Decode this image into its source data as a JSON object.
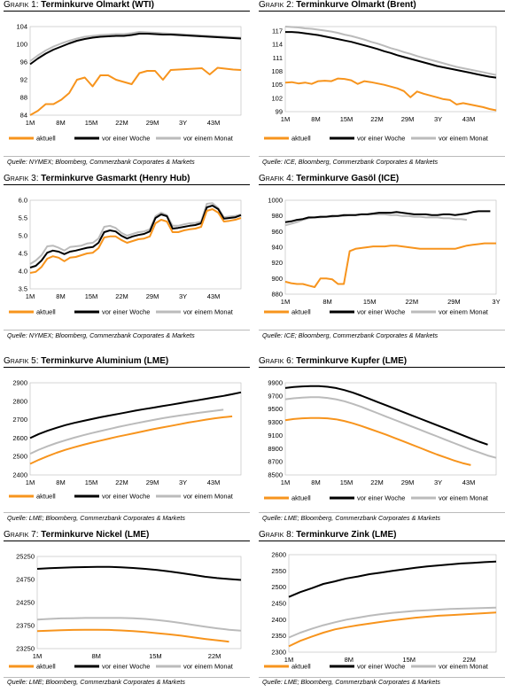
{
  "colors": {
    "aktuell": "#F7941D",
    "woche": "#000000",
    "monat": "#BBBBBB"
  },
  "charts": [
    {
      "prefix": "Grafik 1:",
      "name": "Terminkurve Olmarkt (WTI)",
      "source": "Quelle: NYMEX; Bloomberg, Commerzbank Corporates & Markets",
      "xticks": [
        "1M",
        "8M",
        "15M",
        "22M",
        "29M",
        "3Y",
        "43M"
      ],
      "ylim": [
        84,
        104
      ],
      "yticks": [
        "84",
        "88",
        "92",
        "96",
        "100",
        "104"
      ],
      "legend": [
        "aktuell",
        "vor einer Woche",
        "vor einem Monat"
      ]
    },
    {
      "prefix": "Grafik 2:",
      "name": "Terminkurve Olmarkt (Brent)",
      "source": "Quelle: ICE, Bloomberg, Commerzbank Corporates & Markets",
      "xticks": [
        "1M",
        "8M",
        "15M",
        "22M",
        "29M",
        "3Y",
        "43M"
      ],
      "ylim": [
        99,
        118
      ],
      "yticks": [
        "99",
        "102",
        "105",
        "108",
        "111",
        "114",
        "117"
      ],
      "legend": [
        "aktuell",
        "vor einer Woche",
        "vor einem Monat"
      ]
    },
    {
      "prefix": "Grafik 3:",
      "name": "Terminkurve Gasmarkt (Henry Hub)",
      "source": "Quelle: NYMEX; Bloomberg, Commerzbank Corporates & Markets",
      "xticks": [
        "1M",
        "8M",
        "15M",
        "22M",
        "29M",
        "3Y",
        "43M"
      ],
      "ylim": [
        3.5,
        6.0
      ],
      "yticks": [
        "3.5",
        "4.0",
        "4.5",
        "5.0",
        "5.5",
        "6.0"
      ],
      "legend": [
        "aktuell",
        "vor einer Woche",
        "vor einem Monat"
      ]
    },
    {
      "prefix": "Grafik 4:",
      "name": "Terminkurve Gasöl (ICE)",
      "source": "Quelle: ICE; Bloomberg, Commerzbank Corporates & Markets",
      "xticks": [
        "1M",
        "8M",
        "15M",
        "22M",
        "29M",
        "3Y"
      ],
      "ylim": [
        880,
        1000
      ],
      "yticks": [
        "880",
        "900",
        "920",
        "940",
        "960",
        "980",
        "1000"
      ],
      "legend": [
        "aktuell",
        "vor einer Woche",
        "vor einem Monat"
      ]
    },
    {
      "prefix": "Grafik 5:",
      "name": "Terminkurve Aluminium (LME)",
      "source": "Quelle: LME; Bloomberg, Commerzbank Corporates & Markets",
      "xticks": [
        "1M",
        "8M",
        "15M",
        "22M",
        "29M",
        "3Y",
        "43M"
      ],
      "ylim": [
        2400,
        2900
      ],
      "yticks": [
        "2400",
        "2500",
        "2600",
        "2700",
        "2800",
        "2900"
      ],
      "legend": [
        "aktuell",
        "vor einer Woche",
        "vor einem Monat"
      ]
    },
    {
      "prefix": "Grafik 6:",
      "name": "Terminkurve Kupfer (LME)",
      "source": "Quelle: LME; Bloomberg, Commerzbank Corporates & Markets",
      "xticks": [
        "1M",
        "8M",
        "15M",
        "22M",
        "29M",
        "3Y",
        "43M"
      ],
      "ylim": [
        8500,
        9900
      ],
      "yticks": [
        "8500",
        "8700",
        "8900",
        "9100",
        "9300",
        "9500",
        "9700",
        "9900"
      ],
      "legend": [
        "aktuell",
        "vor einer Woche",
        "vor einem Monat"
      ]
    },
    {
      "prefix": "Grafik 7:",
      "name": "Terminkurve Nickel (LME)",
      "source": "Quelle: LME; Bloomberg, Commerzbank Corporates & Markets",
      "xticks": [
        "1M",
        "8M",
        "15M",
        "22M"
      ],
      "ylim": [
        23250,
        25250
      ],
      "yticks": [
        "23250",
        "23750",
        "24250",
        "24750",
        "25250"
      ],
      "legend": [
        "aktuell",
        "vor einer Woche",
        "vor einem Monat"
      ]
    },
    {
      "prefix": "Grafik 8:",
      "name": "Terminkurve Zink (LME)",
      "source": "Quelle: LME; Bloomberg, Commerzbank Corporates & Markets",
      "xticks": [
        "1M",
        "8M",
        "15M",
        "22M"
      ],
      "ylim": [
        2300,
        2600
      ],
      "yticks": [
        "2300",
        "2350",
        "2400",
        "2450",
        "2500",
        "2550",
        "2600"
      ],
      "legend": [
        "aktuell",
        "vor einer Woche",
        "vor einem Monat"
      ]
    }
  ],
  "chart_data": [
    {
      "type": "line",
      "series": [
        {
          "name": "aktuell",
          "values": [
            84,
            85,
            86.5,
            86.5,
            87.5,
            89,
            92,
            92.5,
            90.5,
            93,
            93,
            92,
            91.5,
            91,
            93.5,
            94,
            94,
            92,
            94.2,
            94.3,
            94.4,
            94.5,
            94.6,
            93.2,
            94.7,
            94.5,
            94.3,
            94.2
          ]
        },
        {
          "name": "vor einer Woche",
          "values": [
            95.5,
            96.8,
            97.9,
            98.8,
            99.5,
            100.2,
            100.8,
            101.2,
            101.5,
            101.7,
            101.8,
            101.9,
            101.9,
            102.1,
            102.4,
            102.4,
            102.3,
            102.2,
            102.2,
            102.1,
            102.0,
            101.9,
            101.8,
            101.7,
            101.6,
            101.5,
            101.4,
            101.3
          ]
        },
        {
          "name": "vor einem Monat",
          "values": [
            96.2,
            97.5,
            98.6,
            99.5,
            100.2,
            100.8,
            101.3,
            101.7,
            101.9,
            102.1,
            102.2,
            102.3,
            102.3,
            102.5,
            102.8,
            102.7,
            102.6,
            102.5,
            102.4,
            102.3,
            102.2,
            102.1,
            102.0,
            101.9,
            101.8,
            101.7,
            101.6,
            101.5
          ]
        }
      ]
    },
    {
      "type": "line",
      "series": [
        {
          "name": "aktuell",
          "values": [
            105.5,
            105.6,
            105.3,
            105.5,
            105.2,
            105.8,
            105.9,
            105.8,
            106.4,
            106.3,
            106.0,
            105.2,
            105.8,
            105.6,
            105.3,
            105.0,
            104.6,
            104.2,
            103.6,
            102.2,
            103.5,
            103.0,
            102.6,
            102.2,
            101.8,
            101.6,
            100.6,
            100.9,
            100.6,
            100.3,
            100.0,
            99.6,
            99.3
          ]
        },
        {
          "name": "vor einer Woche",
          "values": [
            116.8,
            116.8,
            116.7,
            116.5,
            116.3,
            116.1,
            115.8,
            115.5,
            115.2,
            114.9,
            114.6,
            114.2,
            113.8,
            113.4,
            113.0,
            112.5,
            112.1,
            111.6,
            111.2,
            110.8,
            110.4,
            110.0,
            109.6,
            109.2,
            108.9,
            108.6,
            108.3,
            108.0,
            107.7,
            107.4,
            107.1,
            106.8,
            106.6
          ]
        },
        {
          "name": "vor einem Monat",
          "values": [
            118.0,
            117.9,
            117.8,
            117.6,
            117.5,
            117.3,
            117.1,
            116.9,
            116.6,
            116.2,
            115.9,
            115.5,
            115.1,
            114.6,
            114.2,
            113.7,
            113.2,
            112.8,
            112.3,
            111.9,
            111.4,
            111.0,
            110.6,
            110.2,
            109.8,
            109.4,
            109.0,
            108.7,
            108.4,
            108.1,
            107.8,
            107.5,
            107.2
          ]
        }
      ]
    },
    {
      "type": "line",
      "series": [
        {
          "name": "aktuell",
          "values": [
            3.95,
            3.98,
            4.12,
            4.35,
            4.42,
            4.38,
            4.28,
            4.38,
            4.4,
            4.45,
            4.5,
            4.52,
            4.65,
            4.95,
            4.98,
            4.98,
            4.88,
            4.8,
            4.85,
            4.9,
            4.92,
            4.98,
            5.35,
            5.45,
            5.4,
            5.1,
            5.1,
            5.15,
            5.18,
            5.2,
            5.25,
            5.7,
            5.75,
            5.65,
            5.4,
            5.42,
            5.45,
            5.5
          ]
        },
        {
          "name": "vor einer Woche",
          "values": [
            4.1,
            4.15,
            4.3,
            4.52,
            4.58,
            4.55,
            4.48,
            4.55,
            4.58,
            4.62,
            4.66,
            4.68,
            4.8,
            5.1,
            5.15,
            5.12,
            5.0,
            4.92,
            4.98,
            5.02,
            5.05,
            5.12,
            5.5,
            5.6,
            5.55,
            5.2,
            5.22,
            5.25,
            5.28,
            5.3,
            5.35,
            5.8,
            5.85,
            5.75,
            5.48,
            5.5,
            5.52,
            5.58
          ]
        },
        {
          "name": "vor einem Monat",
          "values": [
            4.2,
            4.3,
            4.45,
            4.7,
            4.72,
            4.66,
            4.58,
            4.68,
            4.7,
            4.72,
            4.78,
            4.8,
            4.92,
            5.25,
            5.28,
            5.22,
            5.08,
            5.0,
            5.05,
            5.1,
            5.12,
            5.18,
            5.55,
            5.65,
            5.58,
            5.28,
            5.28,
            5.32,
            5.35,
            5.36,
            5.4,
            5.9,
            5.92,
            5.78,
            5.52,
            5.54,
            5.56,
            5.6
          ]
        }
      ]
    },
    {
      "type": "line",
      "series": [
        {
          "name": "aktuell",
          "values": [
            896,
            894,
            893,
            893,
            891,
            889,
            900,
            900,
            899,
            893,
            893,
            935,
            938,
            939,
            940,
            941,
            941,
            941,
            942,
            942,
            941,
            940,
            939,
            938,
            938,
            938,
            938,
            938,
            938,
            938,
            940,
            942,
            943,
            944,
            945,
            945,
            945
          ]
        },
        {
          "name": "vor einer Woche",
          "values": [
            972,
            973,
            975,
            976,
            978,
            978,
            979,
            979,
            980,
            980,
            981,
            981,
            981,
            982,
            982,
            983,
            984,
            984,
            984,
            985,
            984,
            983,
            982,
            982,
            982,
            981,
            981,
            982,
            982,
            981,
            982,
            983,
            985,
            986,
            986,
            986
          ]
        },
        {
          "name": "vor einem Monat",
          "values": [
            968,
            970,
            972,
            975,
            977,
            978,
            978,
            979,
            979,
            980,
            980,
            981,
            981,
            982,
            982,
            982,
            982,
            982,
            981,
            981,
            980,
            980,
            979,
            979,
            978,
            978,
            978,
            977,
            977,
            976,
            976,
            975
          ]
        }
      ]
    },
    {
      "type": "line",
      "series": [
        {
          "name": "aktuell",
          "values": [
            2460,
            2482,
            2502,
            2520,
            2536,
            2550,
            2563,
            2575,
            2586,
            2597,
            2608,
            2618,
            2628,
            2638,
            2648,
            2657,
            2666,
            2675,
            2684,
            2692,
            2700,
            2707,
            2713,
            2718
          ]
        },
        {
          "name": "vor einer Woche",
          "values": [
            2600,
            2622,
            2640,
            2656,
            2670,
            2682,
            2693,
            2703,
            2713,
            2722,
            2731,
            2740,
            2749,
            2757,
            2765,
            2773,
            2781,
            2789,
            2797,
            2805,
            2813,
            2821,
            2829,
            2838,
            2848
          ]
        },
        {
          "name": "vor einem Monat",
          "values": [
            2515,
            2537,
            2556,
            2573,
            2588,
            2602,
            2615,
            2627,
            2638,
            2649,
            2660,
            2670,
            2680,
            2689,
            2698,
            2707,
            2715,
            2722,
            2729,
            2736,
            2742,
            2748,
            2754
          ]
        }
      ]
    },
    {
      "type": "line",
      "series": [
        {
          "name": "aktuell",
          "values": [
            9330,
            9350,
            9360,
            9365,
            9365,
            9360,
            9345,
            9320,
            9285,
            9245,
            9200,
            9155,
            9110,
            9060,
            9010,
            8960,
            8910,
            8860,
            8810,
            8765,
            8720,
            8680,
            8650
          ]
        },
        {
          "name": "vor einer Woche",
          "values": [
            9820,
            9835,
            9845,
            9850,
            9850,
            9840,
            9820,
            9790,
            9750,
            9705,
            9655,
            9605,
            9555,
            9505,
            9455,
            9405,
            9355,
            9305,
            9255,
            9205,
            9155,
            9105,
            9055,
            9005,
            8960
          ]
        },
        {
          "name": "vor einem Monat",
          "values": [
            9650,
            9665,
            9675,
            9680,
            9680,
            9670,
            9650,
            9620,
            9580,
            9535,
            9485,
            9435,
            9385,
            9335,
            9285,
            9235,
            9185,
            9135,
            9085,
            9035,
            8985,
            8935,
            8885,
            8840,
            8795,
            8760
          ]
        }
      ]
    },
    {
      "type": "line",
      "series": [
        {
          "name": "aktuell",
          "values": [
            23630,
            23640,
            23650,
            23655,
            23660,
            23660,
            23655,
            23645,
            23630,
            23610,
            23585,
            23560,
            23530,
            23495,
            23460,
            23430,
            23400
          ]
        },
        {
          "name": "vor einer Woche",
          "values": [
            24980,
            24995,
            25005,
            25015,
            25020,
            25025,
            25025,
            25015,
            25000,
            24980,
            24955,
            24925,
            24890,
            24850,
            24810,
            24780,
            24760,
            24740
          ]
        },
        {
          "name": "vor einem Monat",
          "values": [
            23880,
            23895,
            23905,
            23910,
            23915,
            23915,
            23915,
            23915,
            23910,
            23895,
            23870,
            23840,
            23805,
            23765,
            23725,
            23690,
            23660,
            23640
          ]
        }
      ]
    },
    {
      "type": "line",
      "series": [
        {
          "name": "aktuell",
          "values": [
            2318,
            2335,
            2348,
            2360,
            2370,
            2377,
            2383,
            2388,
            2393,
            2398,
            2402,
            2406,
            2409,
            2412,
            2414,
            2416,
            2418,
            2420,
            2422
          ]
        },
        {
          "name": "vor einer Woche",
          "values": [
            2470,
            2485,
            2497,
            2510,
            2518,
            2527,
            2533,
            2540,
            2545,
            2550,
            2555,
            2560,
            2564,
            2567,
            2570,
            2573,
            2575,
            2577,
            2579
          ]
        },
        {
          "name": "vor einem Monat",
          "values": [
            2345,
            2360,
            2372,
            2383,
            2392,
            2400,
            2406,
            2412,
            2417,
            2421,
            2424,
            2427,
            2429,
            2431,
            2433,
            2434,
            2435,
            2436,
            2437
          ]
        }
      ]
    }
  ]
}
